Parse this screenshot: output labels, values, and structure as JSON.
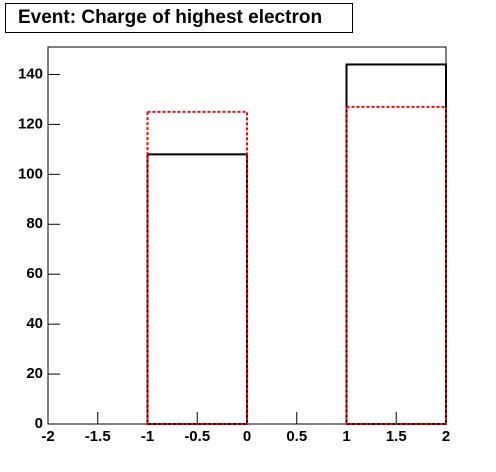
{
  "chart_data": {
    "type": "histogram",
    "title": "Event: Charge of highest electron",
    "bins": [
      -2,
      -1,
      0,
      1,
      2
    ],
    "series": [
      {
        "color": "#000000",
        "style": "solid",
        "values": [
          0,
          108,
          0,
          144
        ]
      },
      {
        "color": "#ff0000",
        "style": "dashed",
        "values": [
          0,
          125,
          0,
          127
        ]
      }
    ],
    "xlim": [
      -2,
      2
    ],
    "xticks": [
      -2,
      -1.5,
      -1,
      -0.5,
      0,
      0.5,
      1,
      1.5,
      2
    ],
    "ylim": [
      0,
      151
    ],
    "yticks": [
      0,
      20,
      40,
      60,
      80,
      100,
      120,
      140
    ],
    "grid": false
  }
}
